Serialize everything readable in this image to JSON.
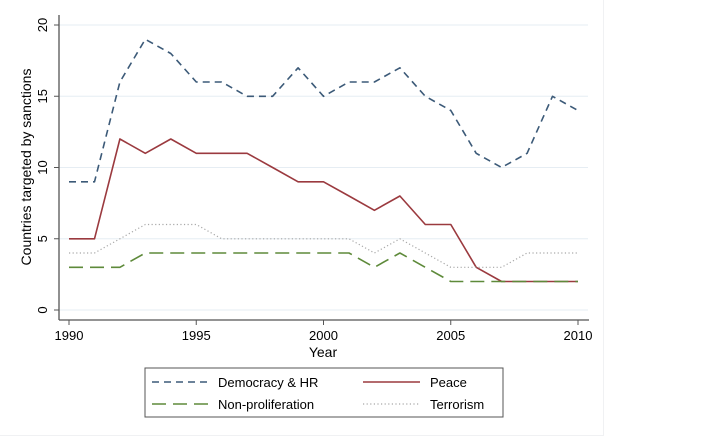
{
  "chart_data": {
    "type": "line",
    "title": "",
    "xlabel": "Year",
    "ylabel": "Countries targeted by sanctions",
    "x": [
      1990,
      1991,
      1992,
      1993,
      1994,
      1995,
      1996,
      1997,
      1998,
      1999,
      2000,
      2001,
      2002,
      2003,
      2004,
      2005,
      2006,
      2007,
      2008,
      2009,
      2010
    ],
    "xlim": [
      1990,
      2010
    ],
    "ylim": [
      0,
      20
    ],
    "xticks": [
      1990,
      1995,
      2000,
      2005,
      2010
    ],
    "yticks": [
      0,
      5,
      10,
      15,
      20
    ],
    "xtick_labels": [
      "1990",
      "1995",
      "2000",
      "2005",
      "2010"
    ],
    "ytick_labels": [
      "0",
      "5",
      "10",
      "15",
      "20"
    ],
    "grid": "horizontal",
    "legend_position": "bottom",
    "series": [
      {
        "name": "Democracy & HR",
        "color": "#3c5a78",
        "style": "dashed",
        "values": [
          9,
          9,
          16,
          19,
          18,
          16,
          16,
          15,
          15,
          17,
          15,
          16,
          16,
          17,
          15,
          14,
          11,
          10,
          11,
          15,
          14
        ]
      },
      {
        "name": "Peace",
        "color": "#9b3a3f",
        "style": "solid",
        "values": [
          5,
          5,
          12,
          11,
          12,
          11,
          11,
          11,
          10,
          9,
          9,
          8,
          7,
          8,
          6,
          6,
          3,
          2,
          2,
          2,
          2
        ]
      },
      {
        "name": "Non-proliferation",
        "color": "#5e8a3a",
        "style": "longdash",
        "values": [
          3,
          3,
          3,
          4,
          4,
          4,
          4,
          4,
          4,
          4,
          4,
          4,
          3,
          4,
          3,
          2,
          2,
          2,
          2,
          2,
          2
        ]
      },
      {
        "name": "Terrorism",
        "color": "#a8a8a8",
        "style": "dotted",
        "values": [
          4,
          4,
          5,
          6,
          6,
          6,
          5,
          5,
          5,
          5,
          5,
          5,
          4,
          5,
          4,
          3,
          3,
          3,
          4,
          4,
          4
        ]
      }
    ]
  }
}
